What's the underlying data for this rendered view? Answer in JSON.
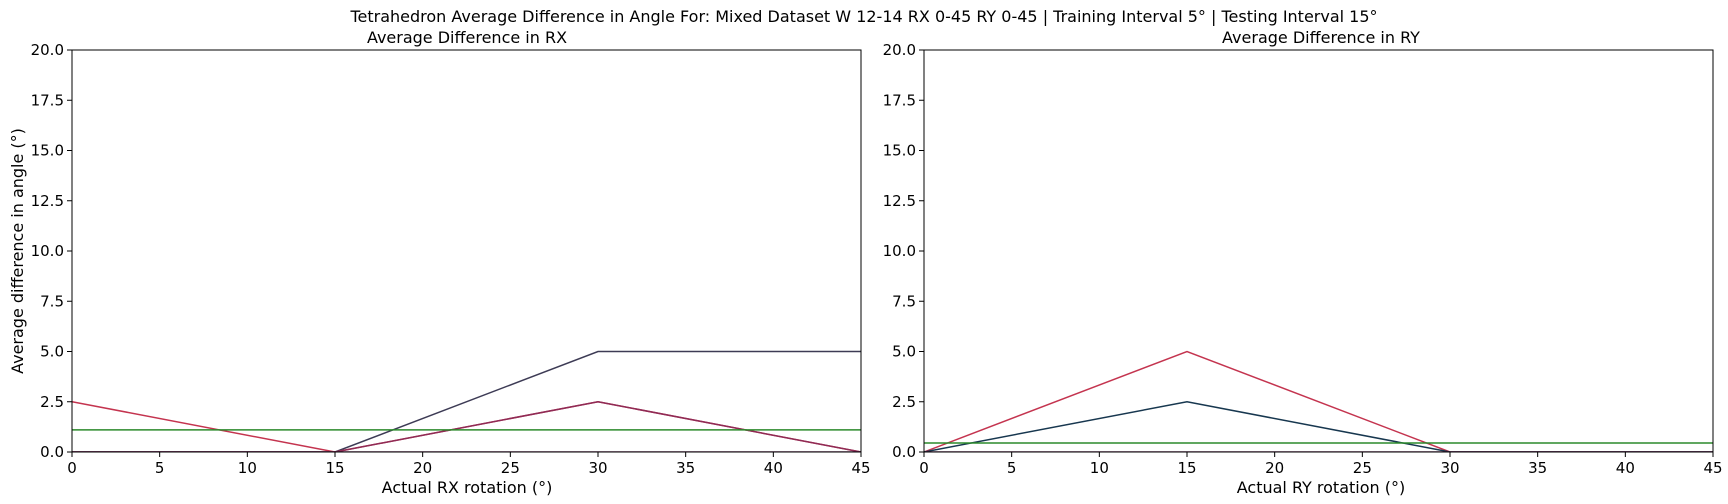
{
  "figure": {
    "suptitle": "Tetrahedron Average Difference in Angle For: Mixed Dataset W 12-14 RX 0-45 RY 0-45 | Training Interval 5° | Testing Interval 15°"
  },
  "chart_data": [
    {
      "type": "line",
      "title": "Average Difference in RX",
      "xlabel": "Actual RX rotation (°)",
      "ylabel": "Average difference in angle (°)",
      "xlim": [
        0,
        45
      ],
      "ylim": [
        0,
        20
      ],
      "xticks": [
        "0",
        "5",
        "10",
        "15",
        "20",
        "25",
        "30",
        "35",
        "40",
        "45"
      ],
      "yticks": [
        "0.0",
        "2.5",
        "5.0",
        "7.5",
        "10.0",
        "12.5",
        "15.0",
        "17.5",
        "20.0"
      ],
      "grid": false,
      "x": [
        0,
        15,
        30,
        45
      ],
      "series": [
        {
          "color": "#3d3b55",
          "values": [
            0,
            0,
            5,
            5
          ]
        },
        {
          "color": "#c4344f",
          "values": [
            2.5,
            0,
            2.5,
            0
          ]
        },
        {
          "color": "#8f2b55",
          "values": [
            0,
            0,
            2.5,
            0
          ]
        },
        {
          "color": "#6a2a5c",
          "values": [
            0,
            0,
            0,
            0
          ]
        },
        {
          "color": "#2b8a2b",
          "values": [
            1.1,
            1.1,
            1.1,
            1.1
          ]
        }
      ]
    },
    {
      "type": "line",
      "title": "Average Difference in RY",
      "xlabel": "Actual RY rotation (°)",
      "ylabel": "",
      "xlim": [
        0,
        45
      ],
      "ylim": [
        0,
        20
      ],
      "xticks": [
        "0",
        "5",
        "10",
        "15",
        "20",
        "25",
        "30",
        "35",
        "40",
        "45"
      ],
      "yticks": [
        "0.0",
        "2.5",
        "5.0",
        "7.5",
        "10.0",
        "12.5",
        "15.0",
        "17.5",
        "20.0"
      ],
      "grid": false,
      "x": [
        0,
        15,
        30,
        45
      ],
      "series": [
        {
          "color": "#c4344f",
          "values": [
            0,
            5,
            0,
            0
          ]
        },
        {
          "color": "#17374f",
          "values": [
            0,
            2.5,
            0,
            0
          ]
        },
        {
          "color": "#6a2a5c",
          "values": [
            0,
            0,
            0,
            0
          ]
        },
        {
          "color": "#2b8a2b",
          "values": [
            0.45,
            0.45,
            0.45,
            0.45
          ]
        }
      ]
    }
  ]
}
